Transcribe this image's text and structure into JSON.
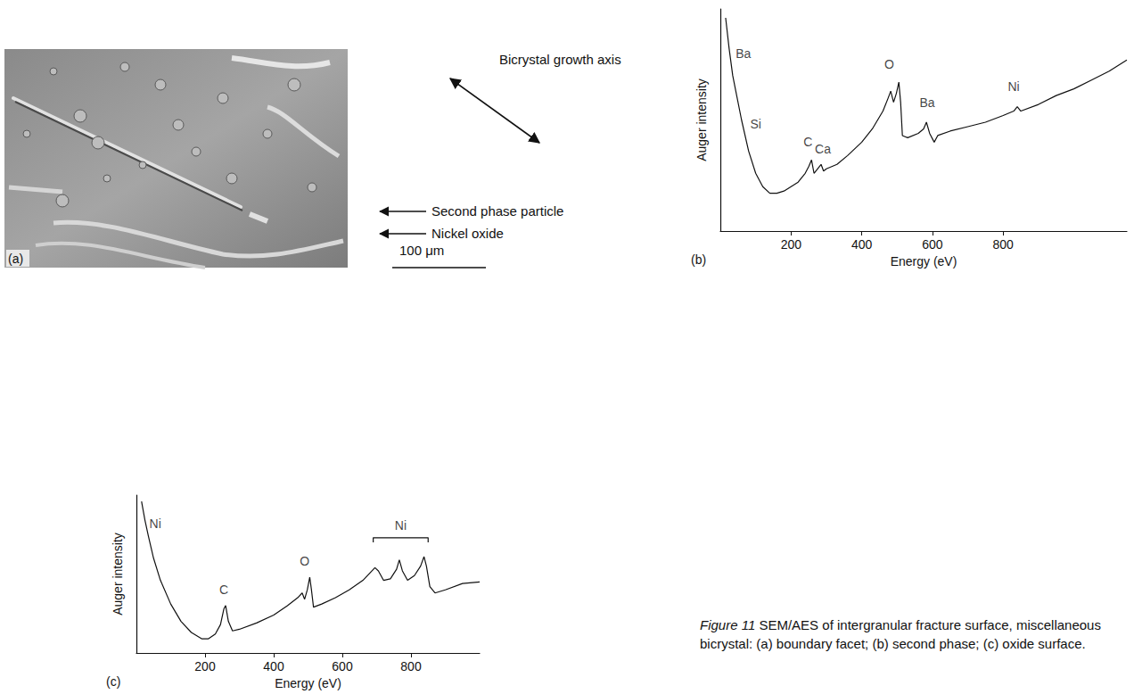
{
  "figure": {
    "caption_label": "Figure 11",
    "caption": "SEM/AES of intergranular fracture surface, miscellaneous bicrystal: (a) boundary facet; (b) second phase; (c) oxide surface.",
    "panel_a": {
      "label": "(a)",
      "annotations": {
        "growth_axis": "Bicrystal growth axis",
        "second_phase": "Second phase particle",
        "oxide": "Nickel oxide"
      },
      "scale_bar": "100 μm"
    }
  },
  "chart_data": [
    {
      "type": "line",
      "panel": "(b)",
      "x_label": "Energy (eV)",
      "y_label": "Auger intensity",
      "xlim": [
        0,
        1150
      ],
      "xticks": [
        200,
        400,
        600,
        800
      ],
      "ylim": [
        0,
        100
      ],
      "tick_labels": "x",
      "grid": false,
      "color": "#111111",
      "x": [
        15,
        25,
        35,
        45,
        60,
        80,
        100,
        120,
        140,
        160,
        180,
        200,
        220,
        240,
        250,
        258,
        265,
        275,
        285,
        292,
        300,
        330,
        360,
        400,
        430,
        460,
        475,
        482,
        490,
        498,
        505,
        510,
        515,
        530,
        560,
        575,
        583,
        592,
        605,
        615,
        650,
        700,
        750,
        800,
        830,
        840,
        850,
        900,
        950,
        1000,
        1050,
        1100,
        1150
      ],
      "values": [
        96,
        82,
        70,
        62,
        50,
        36,
        26,
        20,
        17,
        17,
        18,
        20,
        22,
        26,
        29,
        32,
        26,
        28,
        30,
        27,
        28,
        30,
        34,
        40,
        46,
        54,
        60,
        63,
        58,
        62,
        67,
        58,
        43,
        42,
        44,
        46,
        49,
        44,
        40,
        43,
        45,
        47,
        49,
        52,
        54,
        56,
        54,
        57,
        61,
        64,
        68,
        72,
        77
      ],
      "annotations": [
        {
          "text": "Ba",
          "x": 65,
          "y": 80
        },
        {
          "text": "Si",
          "x": 100,
          "y": 48
        },
        {
          "text": "C",
          "x": 248,
          "y": 40
        },
        {
          "text": "Ca",
          "x": 290,
          "y": 37
        },
        {
          "text": "O",
          "x": 478,
          "y": 75
        },
        {
          "text": "Ba",
          "x": 585,
          "y": 58
        },
        {
          "text": "Ni",
          "x": 830,
          "y": 65
        }
      ]
    },
    {
      "type": "line",
      "panel": "(c)",
      "x_label": "Energy (eV)",
      "y_label": "Auger intensity",
      "xlim": [
        0,
        1000
      ],
      "xticks": [
        200,
        400,
        600,
        800
      ],
      "ylim": [
        0,
        100
      ],
      "tick_labels": "x",
      "grid": false,
      "color": "#111111",
      "x": [
        15,
        25,
        35,
        50,
        70,
        100,
        130,
        160,
        190,
        210,
        230,
        245,
        255,
        260,
        268,
        280,
        300,
        350,
        400,
        440,
        470,
        483,
        490,
        498,
        505,
        510,
        516,
        540,
        580,
        620,
        660,
        695,
        705,
        720,
        740,
        758,
        766,
        775,
        790,
        810,
        828,
        838,
        845,
        855,
        870,
        900,
        950,
        1000
      ],
      "values": [
        96,
        84,
        74,
        60,
        46,
        31,
        20,
        13,
        9,
        9,
        12,
        18,
        28,
        30,
        20,
        14,
        15,
        19,
        24,
        30,
        35,
        38,
        34,
        40,
        48,
        40,
        29,
        31,
        35,
        40,
        46,
        54,
        52,
        46,
        47,
        53,
        59,
        52,
        46,
        49,
        55,
        61,
        55,
        42,
        38,
        40,
        44,
        45
      ],
      "annotations": [
        {
          "text": "Ni",
          "x": 55,
          "y": 82
        },
        {
          "text": "C",
          "x": 255,
          "y": 40
        },
        {
          "text": "O",
          "x": 490,
          "y": 58
        },
        {
          "text": "Ni",
          "x": 770,
          "y": 81,
          "bracket": {
            "x": [
              690,
              850
            ],
            "y": 73
          }
        }
      ]
    }
  ]
}
